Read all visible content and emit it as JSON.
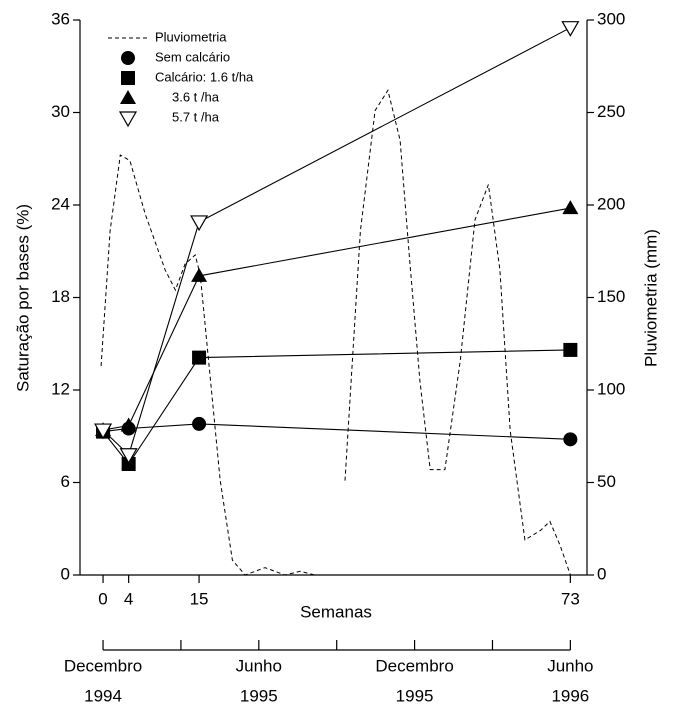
{
  "chart_data": {
    "type": "line",
    "ylabel": "Saturação por bases (%)",
    "y2label": "Pluviometria (mm)",
    "xlabel": "Semanas",
    "x": [
      0,
      4,
      15,
      73
    ],
    "xlim": [
      -3.6,
      75.6
    ],
    "xticks": [
      0,
      4,
      15,
      73
    ],
    "ylim": [
      0,
      36
    ],
    "yticks": [
      0,
      6,
      12,
      18,
      24,
      30,
      36
    ],
    "y2lim": [
      0,
      300
    ],
    "y2ticks": [
      0,
      50,
      100,
      150,
      200,
      250,
      300
    ],
    "series": [
      {
        "name": "Pluviometria",
        "color": "#000000",
        "axis": "y2",
        "style": "dashed",
        "x": [
          -0.3,
          1.1,
          2.7,
          4.2,
          6.6,
          9.7,
          11.3,
          12.8,
          14.4,
          15.2,
          16.7,
          18.3,
          20.2,
          22.2,
          25.3,
          28.4,
          30.8,
          33.1,
          36.2,
          37.8,
          40.2,
          42.5,
          44.5,
          46.4,
          47.9,
          49.5,
          51.1,
          53.4,
          55.8,
          58.1,
          60.2,
          62.0,
          63.6,
          65.9,
          68.3,
          69.8,
          71.4,
          73.0
        ],
        "values": [
          113,
          186,
          227,
          224,
          195,
          165,
          154,
          168,
          173,
          162,
          108,
          51,
          8,
          0,
          4,
          0,
          2,
          0,
          null,
          51,
          186,
          251,
          262,
          235,
          170,
          105,
          57,
          57,
          116,
          192,
          211,
          165,
          78,
          19,
          24,
          29,
          16,
          0
        ]
      },
      {
        "name": "Sem calcário",
        "color": "#000000",
        "marker": "circle",
        "values": [
          9.3,
          9.5,
          9.8,
          8.8
        ]
      },
      {
        "name": "Calcário:  1.6 t/ha",
        "color": "#000000",
        "marker": "square",
        "values": [
          9.3,
          7.2,
          14.1,
          14.6
        ]
      },
      {
        "name": "3.6 t /ha",
        "color": "#000000",
        "marker": "triangle",
        "values": [
          9.4,
          9.7,
          19.4,
          23.8
        ]
      },
      {
        "name": "5.7 t /ha",
        "color": "#000000",
        "marker": "triangle-down",
        "values": [
          9.4,
          7.8,
          22.9,
          35.5
        ]
      }
    ],
    "date_axis": {
      "months": [
        "Decembro",
        "Junho",
        "Decembro",
        "Junho"
      ],
      "years": [
        "1994",
        "1995",
        "1995",
        "1996"
      ]
    }
  }
}
